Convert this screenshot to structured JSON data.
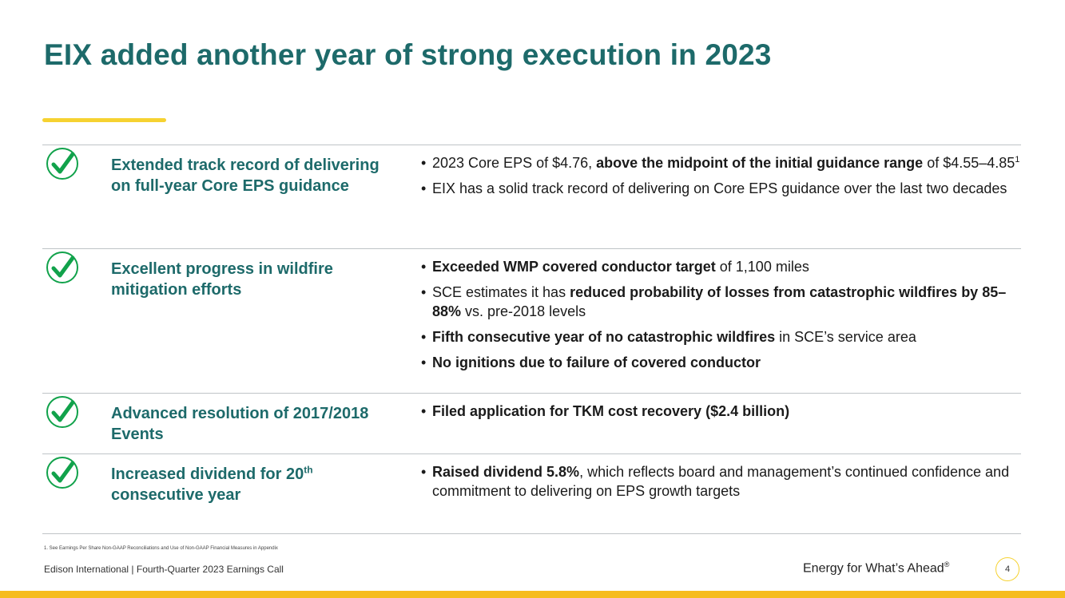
{
  "title": "EIX added another year of strong execution in 2023",
  "colors": {
    "accent_teal": "#1d6a6a",
    "accent_yellow": "#f6d231",
    "bar_gold": "#f6bc1e",
    "check_green": "#11a24b"
  },
  "icon": "checkmark-circle-icon",
  "rows": [
    {
      "title": "Extended track record of delivering on full-year Core EPS guidance",
      "bullets": [
        {
          "pre": "2023 Core EPS of $4.76, ",
          "bold": "above the midpoint of the initial guidance range",
          "post": " of $4.55–4.85",
          "sup": "1"
        },
        {
          "pre": "EIX has a solid track record of delivering on Core EPS guidance over the last two decades",
          "bold": "",
          "post": "",
          "sup": ""
        }
      ]
    },
    {
      "title": "Excellent progress in wildfire mitigation efforts",
      "bullets": [
        {
          "pre": "",
          "bold": "Exceeded WMP covered conductor target",
          "post": " of 1,100 miles",
          "sup": ""
        },
        {
          "pre": "SCE estimates it has ",
          "bold": "reduced probability of losses from catastrophic wildfires by 85–88%",
          "post": " vs. pre-2018 levels",
          "sup": ""
        },
        {
          "pre": "",
          "bold": "Fifth consecutive year of no catastrophic wildfires",
          "post": " in SCE’s service area",
          "sup": ""
        },
        {
          "pre": "",
          "bold": "No ignitions due to failure of covered conductor",
          "post": "",
          "sup": ""
        }
      ]
    },
    {
      "title": "Advanced resolution of 2017/2018 Events",
      "bullets": [
        {
          "pre": "",
          "bold": "Filed application for TKM cost recovery ($2.4 billion)",
          "post": "",
          "sup": ""
        }
      ]
    },
    {
      "title_pre": "Increased dividend for 20",
      "title_sup": "th",
      "title_post": " consecutive year",
      "bullets": [
        {
          "pre": "",
          "bold": "Raised dividend 5.8%",
          "post": ", which reflects board and management’s continued confidence and commitment to delivering on EPS growth targets",
          "sup": ""
        }
      ]
    }
  ],
  "footnote": "1.  See Earnings Per Share Non-GAAP Reconciliations and Use of Non-GAAP Financial Measures in Appendix",
  "footer": {
    "left": "Edison International |  Fourth-Quarter 2023 Earnings Call",
    "tagline": "Energy for What’s Ahead",
    "tagline_mark": "®",
    "page_number": "4"
  }
}
